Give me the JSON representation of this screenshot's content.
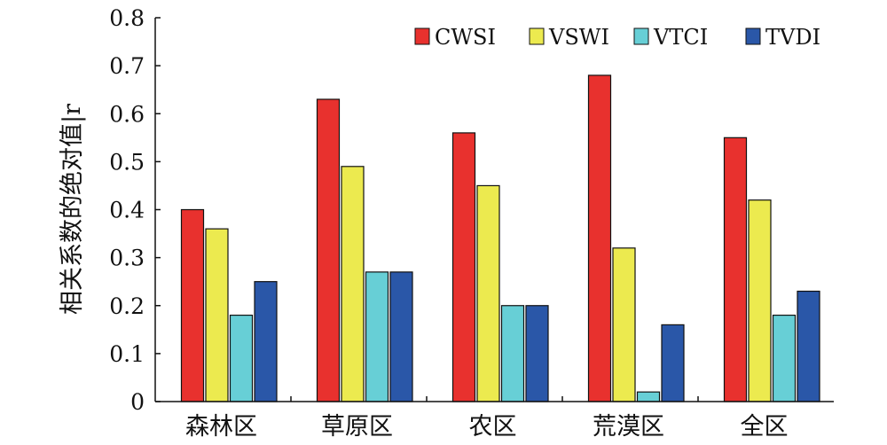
{
  "chart_data": {
    "type": "bar",
    "title": "",
    "xlabel": "",
    "ylabel": "相关系数的绝对值|r",
    "ylim": [
      0,
      0.8
    ],
    "yticks": [
      "0",
      "0.1",
      "0.2",
      "0.3",
      "0.4",
      "0.5",
      "0.6",
      "0.7",
      "0.8"
    ],
    "categories": [
      "森林区",
      "草原区",
      "农区",
      "荒漠区",
      "全区"
    ],
    "legend_position": "top-right",
    "grid": false,
    "series": [
      {
        "name": "CWSI",
        "color": "#e8312e",
        "values": [
          0.4,
          0.63,
          0.56,
          0.68,
          0.55
        ]
      },
      {
        "name": "VSWI",
        "color": "#ecea4f",
        "values": [
          0.36,
          0.49,
          0.45,
          0.32,
          0.42
        ]
      },
      {
        "name": "VTCI",
        "color": "#67cfd6",
        "values": [
          0.18,
          0.27,
          0.2,
          0.02,
          0.18
        ]
      },
      {
        "name": "TVDI",
        "color": "#2a57a8",
        "values": [
          0.25,
          0.27,
          0.2,
          0.16,
          0.23
        ]
      }
    ]
  }
}
